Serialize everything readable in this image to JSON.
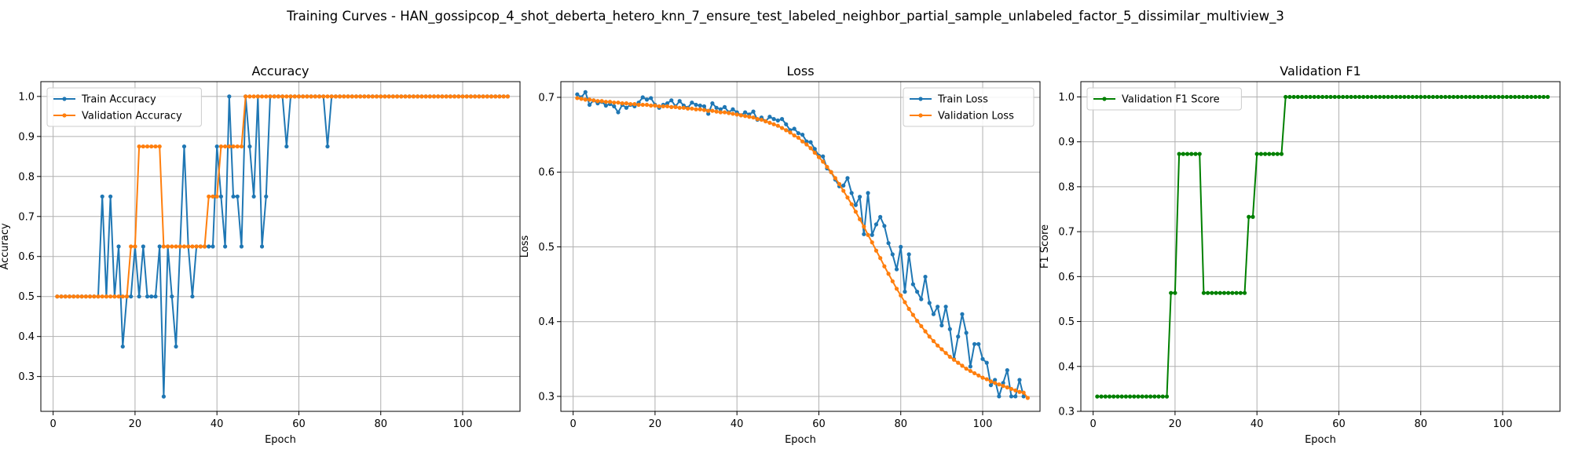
{
  "suptitle": "Training Curves - HAN_gossipcop_4_shot_deberta_hetero_knn_7_ensure_test_labeled_neighbor_partial_sample_unlabeled_factor_5_dissimilar_multiview_3",
  "colors": {
    "train": "#1f77b4",
    "validation": "#ff7f0e",
    "f1": "#008000",
    "grid": "#b0b0b0"
  },
  "chart_data": [
    {
      "type": "line",
      "title": "Accuracy",
      "xlabel": "Epoch",
      "ylabel": "Accuracy",
      "xlim": [
        -3,
        114
      ],
      "ylim": [
        0.213,
        1.037
      ],
      "xticks": [
        0,
        20,
        40,
        60,
        80,
        100
      ],
      "yticks": [
        0.3,
        0.4,
        0.5,
        0.6,
        0.7,
        0.8,
        0.9,
        1.0
      ],
      "ytick_labels": [
        "0.3",
        "0.4",
        "0.5",
        "0.6",
        "0.7",
        "0.8",
        "0.9",
        "1.0"
      ],
      "grid": true,
      "legend_position": "upper-left",
      "x_start": 1,
      "series": [
        {
          "name": "Train Accuracy",
          "color": "#1f77b4",
          "values": [
            0.5,
            0.5,
            0.5,
            0.5,
            0.5,
            0.5,
            0.5,
            0.5,
            0.5,
            0.5,
            0.5,
            0.75,
            0.5,
            0.75,
            0.5,
            0.625,
            0.375,
            0.5,
            0.5,
            0.625,
            0.5,
            0.625,
            0.5,
            0.5,
            0.5,
            0.625,
            0.25,
            0.625,
            0.5,
            0.375,
            0.625,
            0.875,
            0.625,
            0.5,
            0.625,
            0.625,
            0.625,
            0.625,
            0.625,
            0.875,
            0.75,
            0.625,
            1.0,
            0.75,
            0.75,
            0.625,
            1.0,
            0.875,
            0.75,
            1.0,
            0.625,
            0.75,
            1.0,
            1.0,
            1.0,
            1.0,
            0.875,
            1.0,
            1.0,
            1.0,
            1.0,
            1.0,
            1.0,
            1.0,
            1.0,
            1.0,
            0.875,
            1.0,
            1.0,
            1.0,
            1.0,
            1.0,
            1.0,
            1.0,
            1.0,
            1.0,
            1.0,
            1.0,
            1.0,
            1.0,
            1.0,
            1.0,
            1.0,
            1.0,
            1.0,
            1.0,
            1.0,
            1.0,
            1.0,
            1.0,
            1.0,
            1.0,
            1.0,
            1.0,
            1.0,
            1.0,
            1.0,
            1.0,
            1.0,
            1.0,
            1.0,
            1.0,
            1.0,
            1.0,
            1.0,
            1.0,
            1.0,
            1.0,
            1.0,
            1.0,
            1.0
          ]
        },
        {
          "name": "Validation Accuracy",
          "color": "#ff7f0e",
          "values": [
            0.5,
            0.5,
            0.5,
            0.5,
            0.5,
            0.5,
            0.5,
            0.5,
            0.5,
            0.5,
            0.5,
            0.5,
            0.5,
            0.5,
            0.5,
            0.5,
            0.5,
            0.5,
            0.625,
            0.625,
            0.875,
            0.875,
            0.875,
            0.875,
            0.875,
            0.875,
            0.625,
            0.625,
            0.625,
            0.625,
            0.625,
            0.625,
            0.625,
            0.625,
            0.625,
            0.625,
            0.625,
            0.75,
            0.75,
            0.75,
            0.875,
            0.875,
            0.875,
            0.875,
            0.875,
            0.875,
            1.0,
            1.0,
            1.0,
            1.0,
            1.0,
            1.0,
            1.0,
            1.0,
            1.0,
            1.0,
            1.0,
            1.0,
            1.0,
            1.0,
            1.0,
            1.0,
            1.0,
            1.0,
            1.0,
            1.0,
            1.0,
            1.0,
            1.0,
            1.0,
            1.0,
            1.0,
            1.0,
            1.0,
            1.0,
            1.0,
            1.0,
            1.0,
            1.0,
            1.0,
            1.0,
            1.0,
            1.0,
            1.0,
            1.0,
            1.0,
            1.0,
            1.0,
            1.0,
            1.0,
            1.0,
            1.0,
            1.0,
            1.0,
            1.0,
            1.0,
            1.0,
            1.0,
            1.0,
            1.0,
            1.0,
            1.0,
            1.0,
            1.0,
            1.0,
            1.0,
            1.0,
            1.0,
            1.0,
            1.0,
            1.0
          ]
        }
      ]
    },
    {
      "type": "line",
      "title": "Loss",
      "xlabel": "Epoch",
      "ylabel": "Loss",
      "xlim": [
        -3,
        114
      ],
      "ylim": [
        0.28,
        0.721
      ],
      "xticks": [
        0,
        20,
        40,
        60,
        80,
        100
      ],
      "yticks": [
        0.3,
        0.4,
        0.5,
        0.6,
        0.7
      ],
      "ytick_labels": [
        "0.3",
        "0.4",
        "0.5",
        "0.6",
        "0.7"
      ],
      "grid": true,
      "legend_position": "upper-right",
      "x_start": 1,
      "series": [
        {
          "name": "Train Loss",
          "color": "#1f77b4",
          "values": [
            0.704,
            0.7,
            0.707,
            0.69,
            0.696,
            0.692,
            0.694,
            0.689,
            0.691,
            0.688,
            0.68,
            0.69,
            0.686,
            0.69,
            0.688,
            0.693,
            0.7,
            0.697,
            0.699,
            0.69,
            0.686,
            0.69,
            0.692,
            0.696,
            0.688,
            0.695,
            0.689,
            0.686,
            0.693,
            0.69,
            0.689,
            0.688,
            0.678,
            0.692,
            0.686,
            0.684,
            0.687,
            0.68,
            0.684,
            0.68,
            0.676,
            0.68,
            0.677,
            0.681,
            0.67,
            0.673,
            0.668,
            0.674,
            0.671,
            0.669,
            0.671,
            0.664,
            0.656,
            0.658,
            0.652,
            0.65,
            0.641,
            0.64,
            0.631,
            0.622,
            0.621,
            0.605,
            0.6,
            0.59,
            0.581,
            0.582,
            0.592,
            0.572,
            0.556,
            0.567,
            0.517,
            0.572,
            0.516,
            0.53,
            0.54,
            0.528,
            0.505,
            0.49,
            0.47,
            0.5,
            0.44,
            0.49,
            0.45,
            0.44,
            0.43,
            0.46,
            0.425,
            0.41,
            0.42,
            0.395,
            0.42,
            0.39,
            0.35,
            0.38,
            0.41,
            0.385,
            0.34,
            0.37,
            0.37,
            0.35,
            0.345,
            0.315,
            0.322,
            0.3,
            0.318,
            0.335,
            0.3,
            0.3,
            0.322,
            0.3
          ]
        },
        {
          "name": "Validation Loss",
          "color": "#ff7f0e",
          "values": [
            0.699,
            0.698,
            0.697,
            0.697,
            0.696,
            0.695,
            0.695,
            0.694,
            0.694,
            0.693,
            0.693,
            0.692,
            0.692,
            0.691,
            0.691,
            0.69,
            0.69,
            0.69,
            0.689,
            0.689,
            0.688,
            0.688,
            0.688,
            0.687,
            0.687,
            0.686,
            0.686,
            0.685,
            0.685,
            0.684,
            0.684,
            0.683,
            0.682,
            0.682,
            0.681,
            0.68,
            0.68,
            0.679,
            0.678,
            0.677,
            0.676,
            0.675,
            0.674,
            0.673,
            0.671,
            0.67,
            0.668,
            0.666,
            0.664,
            0.662,
            0.659,
            0.656,
            0.653,
            0.649,
            0.646,
            0.641,
            0.637,
            0.632,
            0.626,
            0.62,
            0.614,
            0.607,
            0.6,
            0.592,
            0.584,
            0.575,
            0.566,
            0.557,
            0.547,
            0.537,
            0.527,
            0.516,
            0.506,
            0.495,
            0.485,
            0.474,
            0.464,
            0.454,
            0.444,
            0.435,
            0.426,
            0.417,
            0.409,
            0.401,
            0.394,
            0.387,
            0.38,
            0.374,
            0.368,
            0.363,
            0.358,
            0.353,
            0.349,
            0.345,
            0.341,
            0.337,
            0.334,
            0.331,
            0.328,
            0.325,
            0.323,
            0.32,
            0.318,
            0.316,
            0.314,
            0.312,
            0.31,
            0.308,
            0.306,
            0.305,
            0.298
          ]
        }
      ]
    },
    {
      "type": "line",
      "title": "Validation F1",
      "xlabel": "Epoch",
      "ylabel": "F1 Score",
      "xlim": [
        -3,
        114
      ],
      "ylim": [
        0.3,
        1.034
      ],
      "xticks": [
        0,
        20,
        40,
        60,
        80,
        100
      ],
      "yticks": [
        0.3,
        0.4,
        0.5,
        0.6,
        0.7,
        0.8,
        0.9,
        1.0
      ],
      "ytick_labels": [
        "0.3",
        "0.4",
        "0.5",
        "0.6",
        "0.7",
        "0.8",
        "0.9",
        "1.0"
      ],
      "grid": true,
      "legend_position": "upper-left",
      "x_start": 1,
      "series": [
        {
          "name": "Validation F1 Score",
          "color": "#008000",
          "values": [
            0.333,
            0.333,
            0.333,
            0.333,
            0.333,
            0.333,
            0.333,
            0.333,
            0.333,
            0.333,
            0.333,
            0.333,
            0.333,
            0.333,
            0.333,
            0.333,
            0.333,
            0.333,
            0.5636,
            0.5636,
            0.873,
            0.873,
            0.873,
            0.873,
            0.873,
            0.873,
            0.5636,
            0.5636,
            0.5636,
            0.5636,
            0.5636,
            0.5636,
            0.5636,
            0.5636,
            0.5636,
            0.5636,
            0.5636,
            0.733,
            0.733,
            0.873,
            0.873,
            0.873,
            0.873,
            0.873,
            0.873,
            0.873,
            1.0,
            1.0,
            1.0,
            1.0,
            1.0,
            1.0,
            1.0,
            1.0,
            1.0,
            1.0,
            1.0,
            1.0,
            1.0,
            1.0,
            1.0,
            1.0,
            1.0,
            1.0,
            1.0,
            1.0,
            1.0,
            1.0,
            1.0,
            1.0,
            1.0,
            1.0,
            1.0,
            1.0,
            1.0,
            1.0,
            1.0,
            1.0,
            1.0,
            1.0,
            1.0,
            1.0,
            1.0,
            1.0,
            1.0,
            1.0,
            1.0,
            1.0,
            1.0,
            1.0,
            1.0,
            1.0,
            1.0,
            1.0,
            1.0,
            1.0,
            1.0,
            1.0,
            1.0,
            1.0,
            1.0,
            1.0,
            1.0,
            1.0,
            1.0,
            1.0,
            1.0,
            1.0,
            1.0,
            1.0,
            1.0
          ]
        }
      ]
    }
  ]
}
